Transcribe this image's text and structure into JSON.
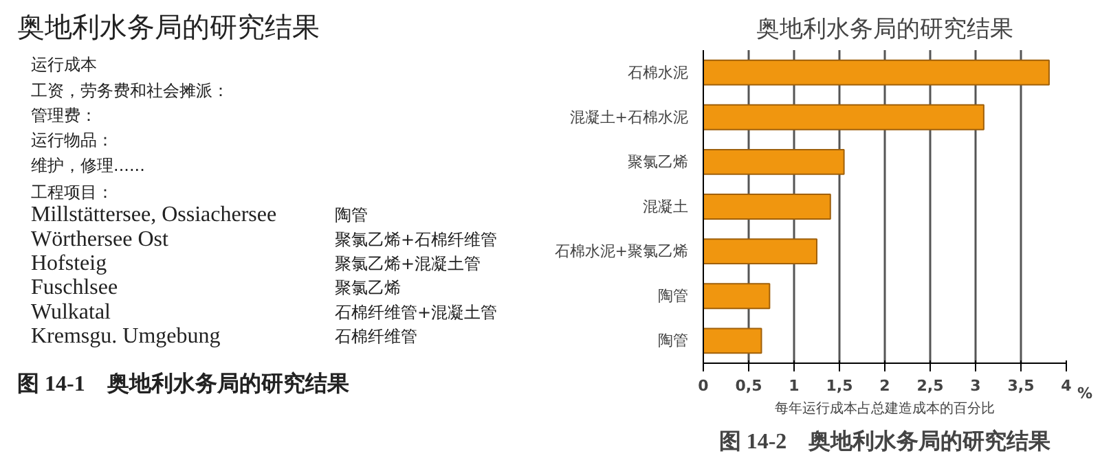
{
  "chart_data": [
    {
      "type": "other",
      "title": "奥地利水务局的研究结果",
      "annotations": [
        "运行成本",
        "工资，劳务费和社会摊派：",
        "管理费：",
        "运行物品：",
        "维护，修理......",
        "工程项目：",
        "Millstättersee, Ossiachersee",
        "陶管",
        "Wörthersee Ost",
        "聚氯乙烯+石棉纤维管",
        "Hofsteig",
        "聚氯乙烯+混凝土管",
        "Fuschlsee",
        "聚氯乙烯",
        "Wulkatal",
        "石棉纤维管+混凝土管",
        "Kremsgu. Umgebung",
        "石棉纤维管",
        "图 14-1　奥地利水务局的研究结果"
      ]
    },
    {
      "type": "bar",
      "orientation": "horizontal",
      "title": "奥地利水务局的研究结果",
      "xlabel": "每年运行成本占总建造成本的百分比",
      "categories": [
        "石棉水泥",
        "混凝土+石棉水泥",
        "聚氯乙烯",
        "混凝土",
        "石棉水泥+聚氯乙烯",
        "陶管",
        "陶管"
      ],
      "values": [
        3.81,
        3.09,
        1.55,
        1.4,
        1.25,
        0.73,
        0.64
      ],
      "color": "#f0960f",
      "xlim": [
        0,
        4
      ],
      "xticks": [
        0,
        {
          "value": 0.5,
          "label": "0,5"
        },
        1,
        {
          "value": 1.5,
          "label": "1,5"
        },
        2,
        {
          "value": 2.5,
          "label": "2,5"
        },
        3,
        {
          "value": 3.5,
          "label": "3,5"
        },
        4
      ],
      "grid": "x",
      "annotations": [
        "%",
        "图 14-2　奥地利水务局的研究结果"
      ]
    }
  ]
}
